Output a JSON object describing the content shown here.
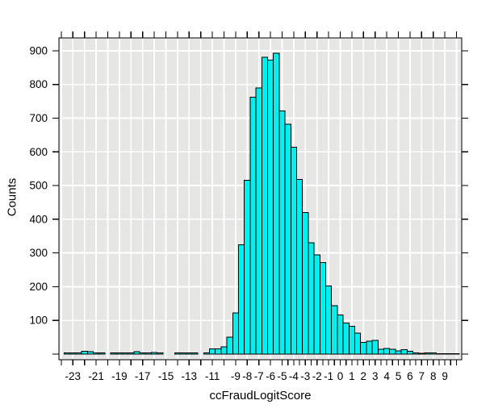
{
  "chart_data": {
    "type": "bar",
    "subtype": "histogram",
    "title": "",
    "xlabel": "ccFraudLogitScore",
    "ylabel": "Counts",
    "bin_width": 0.5,
    "bins": {
      "centers": [
        -23.5,
        -23.0,
        -22.5,
        -22.0,
        -21.5,
        -21.0,
        -20.5,
        -20.0,
        -19.5,
        -19.0,
        -18.5,
        -18.0,
        -17.5,
        -17.0,
        -16.5,
        -16.0,
        -15.5,
        -15.0,
        -14.5,
        -14.0,
        -13.5,
        -13.0,
        -12.5,
        -12.0,
        -11.5,
        -11.0,
        -10.5,
        -10.0,
        -9.5,
        -9.0,
        -8.5,
        -8.0,
        -7.5,
        -7.0,
        -6.5,
        -6.0,
        -5.5,
        -5.0,
        -4.5,
        -4.0,
        -3.5,
        -3.0,
        -2.5,
        -2.0,
        -1.5,
        -1.0,
        -0.5,
        0.0,
        0.5,
        1.0,
        1.5,
        2.0,
        2.5,
        3.0,
        3.5,
        4.0,
        4.5,
        5.0,
        5.5,
        6.0,
        6.5,
        7.0,
        7.5,
        8.0,
        8.5,
        9.0,
        9.5,
        10.0
      ],
      "counts": [
        4,
        4,
        4,
        8,
        7,
        4,
        4,
        0,
        4,
        4,
        4,
        4,
        7,
        4,
        4,
        5,
        4,
        0,
        0,
        4,
        4,
        4,
        3,
        0,
        4,
        16,
        16,
        21,
        50,
        122,
        324,
        516,
        762,
        790,
        880,
        872,
        893,
        722,
        682,
        614,
        518,
        420,
        330,
        294,
        272,
        202,
        144,
        116,
        92,
        82,
        62,
        35,
        38,
        41,
        14,
        17,
        14,
        10,
        13,
        8,
        3,
        2,
        3,
        3,
        1,
        1,
        1,
        1
      ]
    },
    "x_axis": {
      "range": [
        -24.2,
        10.45
      ],
      "tick_labels": [
        "-23",
        "-21",
        "-19",
        "-17",
        "-15",
        "-13",
        "-11",
        "-9",
        "-8",
        "-7",
        "-6",
        "-5",
        "-4",
        "-3",
        "-2",
        "-1",
        "0",
        "1",
        "2",
        "3",
        "4",
        "5",
        "6",
        "7",
        "8",
        "9"
      ],
      "tick_values": [
        -23,
        -21,
        -19,
        -17,
        -15,
        -13,
        -11,
        -9,
        -8,
        -7,
        -6,
        -5,
        -4,
        -3,
        -2,
        -1,
        0,
        1,
        2,
        3,
        4,
        5,
        6,
        7,
        8,
        9
      ],
      "minor_ticks": {
        "integer_step_from": -24,
        "half_step_from": -5,
        "to": 10
      },
      "gridline_step": 1
    },
    "y_axis": {
      "range": [
        0,
        938
      ],
      "tick_labels": [
        "100",
        "200",
        "300",
        "400",
        "500",
        "600",
        "700",
        "800",
        "900"
      ],
      "tick_values": [
        100,
        200,
        300,
        400,
        500,
        600,
        700,
        800,
        900
      ],
      "gridline_step": 100,
      "unlabeled_zero_tick": true
    },
    "legend": "none",
    "grid": "on"
  },
  "style": {
    "bar_fill": "#00EFEF",
    "bar_stroke": "#000000",
    "plot_bg": "#E6E6E4",
    "grid_color": "#FFFFFF",
    "frame_color": "#000000",
    "outer_bg": "#FFFFFF"
  }
}
